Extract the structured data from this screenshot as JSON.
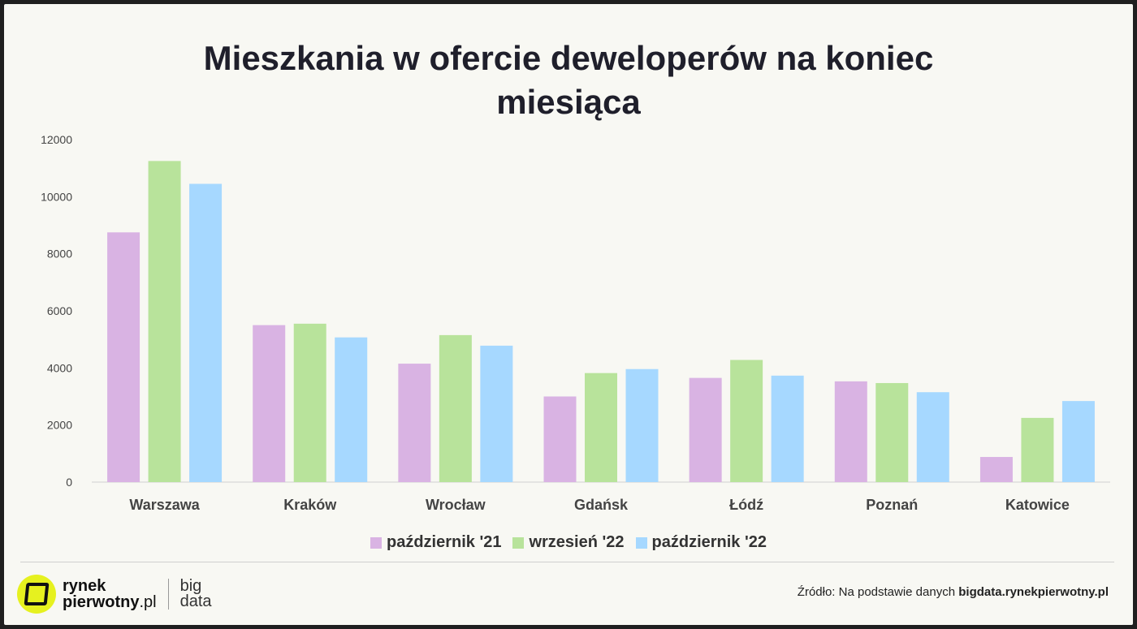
{
  "chart_data": {
    "type": "bar",
    "title": "Mieszkania w ofercie deweloperów na koniec miesiąca",
    "title_lines": [
      "Mieszkania w ofercie deweloperów na koniec",
      "miesiąca"
    ],
    "categories": [
      "Warszawa",
      "Kraków",
      "Wrocław",
      "Gdańsk",
      "Łódź",
      "Poznań",
      "Katowice"
    ],
    "series": [
      {
        "name": "październik '21",
        "color": "#d9b3e3",
        "values": [
          8750,
          5500,
          4150,
          3000,
          3650,
          3530,
          880
        ]
      },
      {
        "name": "wrzesień '22",
        "color": "#b8e39b",
        "values": [
          11250,
          5550,
          5150,
          3820,
          4280,
          3470,
          2250
        ]
      },
      {
        "name": "październik '22",
        "color": "#a6d8ff",
        "values": [
          10450,
          5070,
          4780,
          3960,
          3730,
          3150,
          2840
        ]
      }
    ],
    "ylim": [
      0,
      12000
    ],
    "yticks": [
      "0",
      "2000",
      "4000",
      "6000",
      "8000",
      "10000",
      "12000"
    ],
    "grid": false,
    "legend_position": "bottom"
  },
  "footer": {
    "logo_line1": "rynek",
    "logo_line2a": "pierwotny",
    "logo_line2b": ".pl",
    "logo_big1": "big",
    "logo_big2": "data",
    "source_prefix": "Źródło: Na podstawie danych",
    "source_link": "bigdata.rynekpierwotny.pl"
  }
}
